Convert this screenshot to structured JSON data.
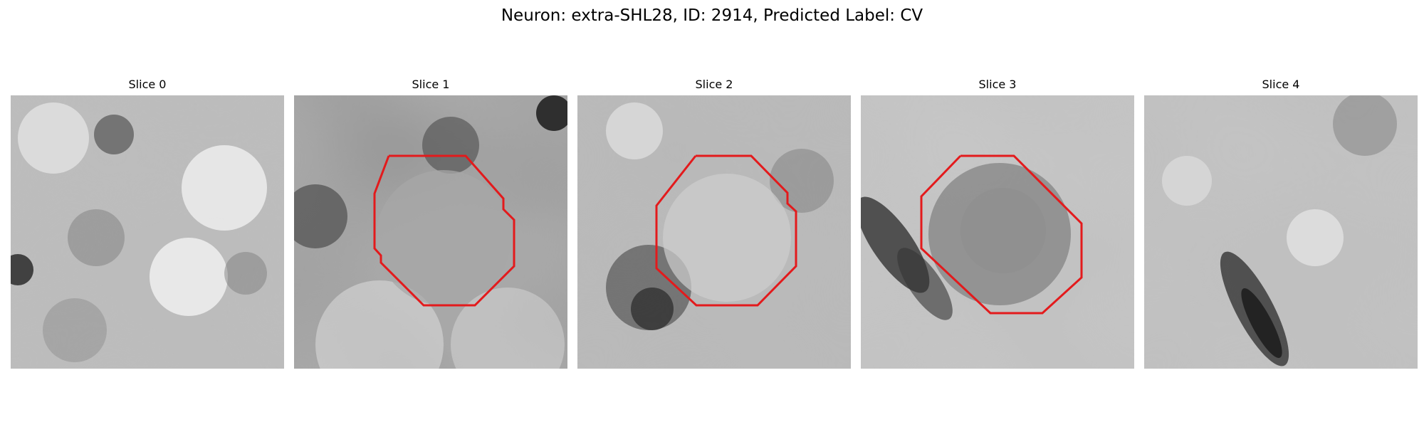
{
  "figure": {
    "title": "Neuron: extra-SHL28, ID: 2914, Predicted Label: CV",
    "overlay_color": "#e31a1c"
  },
  "slices": [
    {
      "title": "Slice 0",
      "has_contour": false
    },
    {
      "title": "Slice 1",
      "has_contour": true
    },
    {
      "title": "Slice 2",
      "has_contour": true
    },
    {
      "title": "Slice 3",
      "has_contour": true
    },
    {
      "title": "Slice 4",
      "has_contour": false
    }
  ]
}
